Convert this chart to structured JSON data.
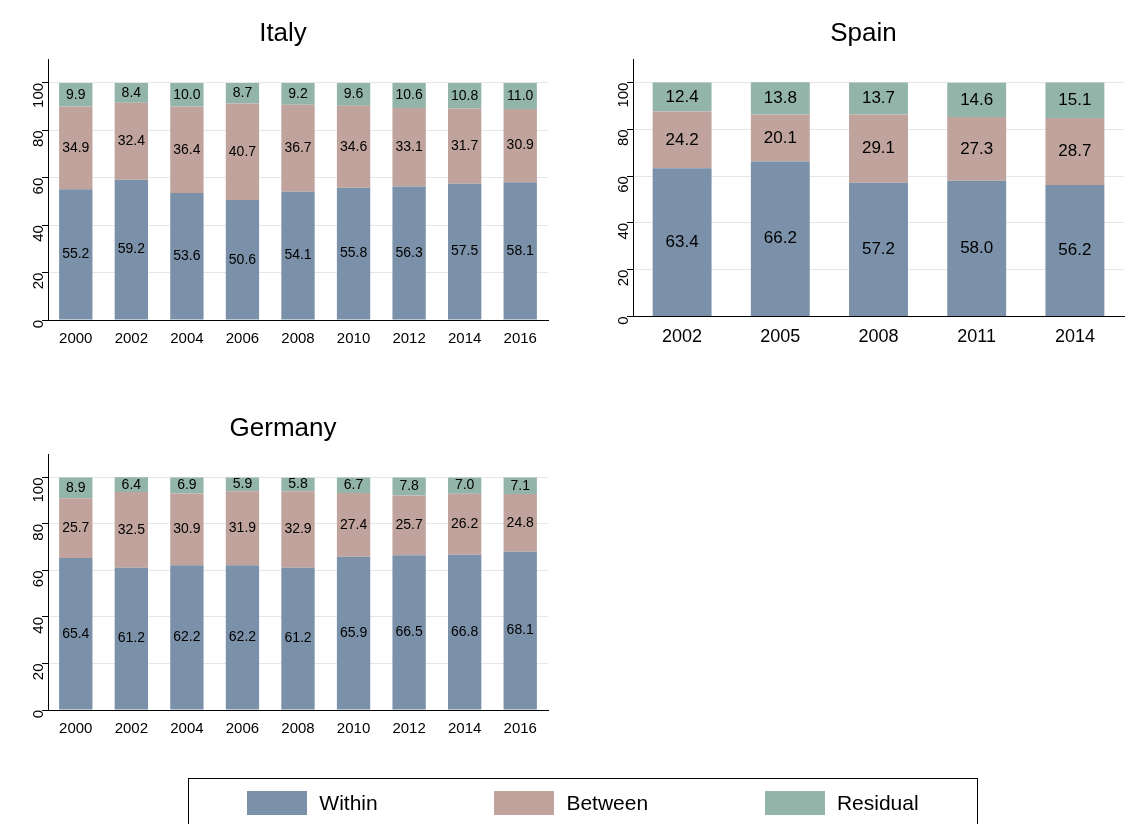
{
  "chart_data": [
    {
      "type": "bar",
      "title": "Italy",
      "stacked": true,
      "grid": "y",
      "ylim": [
        0,
        110
      ],
      "yticks": [
        0,
        20,
        40,
        60,
        80,
        100
      ],
      "categories": [
        "2000",
        "2002",
        "2004",
        "2006",
        "2008",
        "2010",
        "2012",
        "2014",
        "2016"
      ],
      "series": [
        {
          "color": "#7b91a9",
          "values": [
            55.2,
            59.2,
            53.6,
            50.6,
            54.1,
            55.8,
            56.3,
            57.5,
            58.1
          ],
          "value_labels": [
            "55.2",
            "59.2",
            "53.6",
            "50.6",
            "54.1",
            "55.8",
            "56.3",
            "57.5",
            "58.1"
          ]
        },
        {
          "color": "#bfa39c",
          "values": [
            34.9,
            32.4,
            36.4,
            40.7,
            36.7,
            34.6,
            33.1,
            31.7,
            30.9
          ],
          "value_labels": [
            "34.9",
            "32.4",
            "36.4",
            "40.7",
            "36.7",
            "34.6",
            "33.1",
            "31.7",
            "30.9"
          ]
        },
        {
          "color": "#93b5a9",
          "values": [
            9.9,
            8.4,
            10.0,
            8.7,
            9.2,
            9.6,
            10.6,
            10.8,
            11.0
          ],
          "value_labels": [
            "9.9",
            "8.4",
            "10.0",
            "8.7",
            "9.2",
            "9.6",
            "10.6",
            "10.8",
            "11.0"
          ]
        }
      ]
    },
    {
      "type": "bar",
      "title": "Spain",
      "stacked": true,
      "grid": "y",
      "ylim": [
        0,
        110
      ],
      "yticks": [
        0,
        20,
        40,
        60,
        80,
        100
      ],
      "categories": [
        "2002",
        "2005",
        "2008",
        "2011",
        "2014"
      ],
      "series": [
        {
          "color": "#7b91a9",
          "values": [
            63.4,
            66.2,
            57.2,
            58.0,
            56.2
          ],
          "value_labels": [
            "63.4",
            "66.2",
            "57.2",
            "58.0",
            "56.2"
          ]
        },
        {
          "color": "#bfa39c",
          "values": [
            24.2,
            20.1,
            29.1,
            27.3,
            28.7
          ],
          "value_labels": [
            "24.2",
            "20.1",
            "29.1",
            "27.3",
            "28.7"
          ]
        },
        {
          "color": "#93b5a9",
          "values": [
            12.4,
            13.8,
            13.7,
            14.6,
            15.1
          ],
          "value_labels": [
            "12.4",
            "13.8",
            "13.7",
            "14.6",
            "15.1"
          ]
        }
      ]
    },
    {
      "type": "bar",
      "title": "Germany",
      "stacked": true,
      "grid": "y",
      "legend": "bottom",
      "ylim": [
        0,
        110
      ],
      "yticks": [
        0,
        20,
        40,
        60,
        80,
        100
      ],
      "categories": [
        "2000",
        "2002",
        "2004",
        "2006",
        "2008",
        "2010",
        "2012",
        "2014",
        "2016"
      ],
      "series": [
        {
          "name": "Within",
          "color": "#7b91a9",
          "values": [
            65.4,
            61.2,
            62.2,
            62.2,
            61.2,
            65.9,
            66.5,
            66.8,
            68.1
          ],
          "value_labels": [
            "65.4",
            "61.2",
            "62.2",
            "62.2",
            "61.2",
            "65.9",
            "66.5",
            "66.8",
            "68.1"
          ]
        },
        {
          "name": "Between",
          "color": "#bfa39c",
          "values": [
            25.7,
            32.5,
            30.9,
            31.9,
            32.9,
            27.4,
            25.7,
            26.2,
            24.8
          ],
          "value_labels": [
            "25.7",
            "32.5",
            "30.9",
            "31.9",
            "32.9",
            "27.4",
            "25.7",
            "26.2",
            "24.8"
          ]
        },
        {
          "name": "Residual",
          "color": "#93b5a9",
          "values": [
            8.9,
            6.4,
            6.9,
            5.9,
            5.8,
            6.7,
            7.8,
            7.0,
            7.1
          ],
          "value_labels": [
            "8.9",
            "6.4",
            "6.9",
            "5.9",
            "5.8",
            "6.7",
            "7.8",
            "7.0",
            "7.1"
          ]
        }
      ]
    }
  ]
}
